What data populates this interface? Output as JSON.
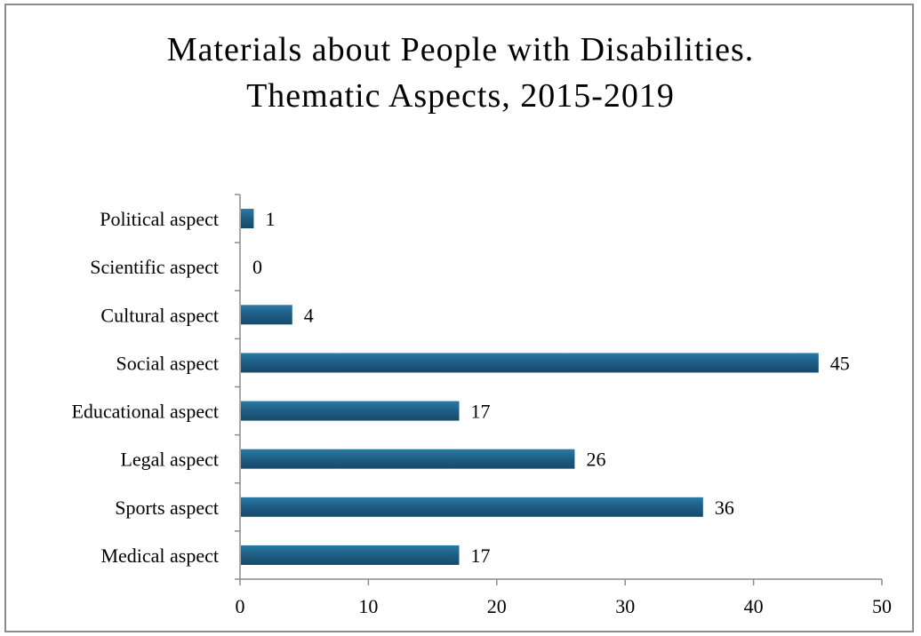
{
  "chart_data": {
    "type": "bar",
    "orientation": "horizontal",
    "title_lines": [
      "Materials about People with Disabilities.",
      "Thematic Aspects, 2015-2019"
    ],
    "categories": [
      "Political aspect",
      "Scientific aspect",
      "Cultural aspect",
      "Social aspect",
      "Educational aspect",
      "Legal aspect",
      "Sports aspect",
      "Medical aspect"
    ],
    "values": [
      1,
      0,
      4,
      45,
      17,
      26,
      36,
      17
    ],
    "xlim": [
      0,
      50
    ],
    "xticks": [
      "0",
      "10",
      "20",
      "30",
      "40",
      "50"
    ],
    "grid": false,
    "legend": "none",
    "bar_color": "#1f5f86"
  }
}
